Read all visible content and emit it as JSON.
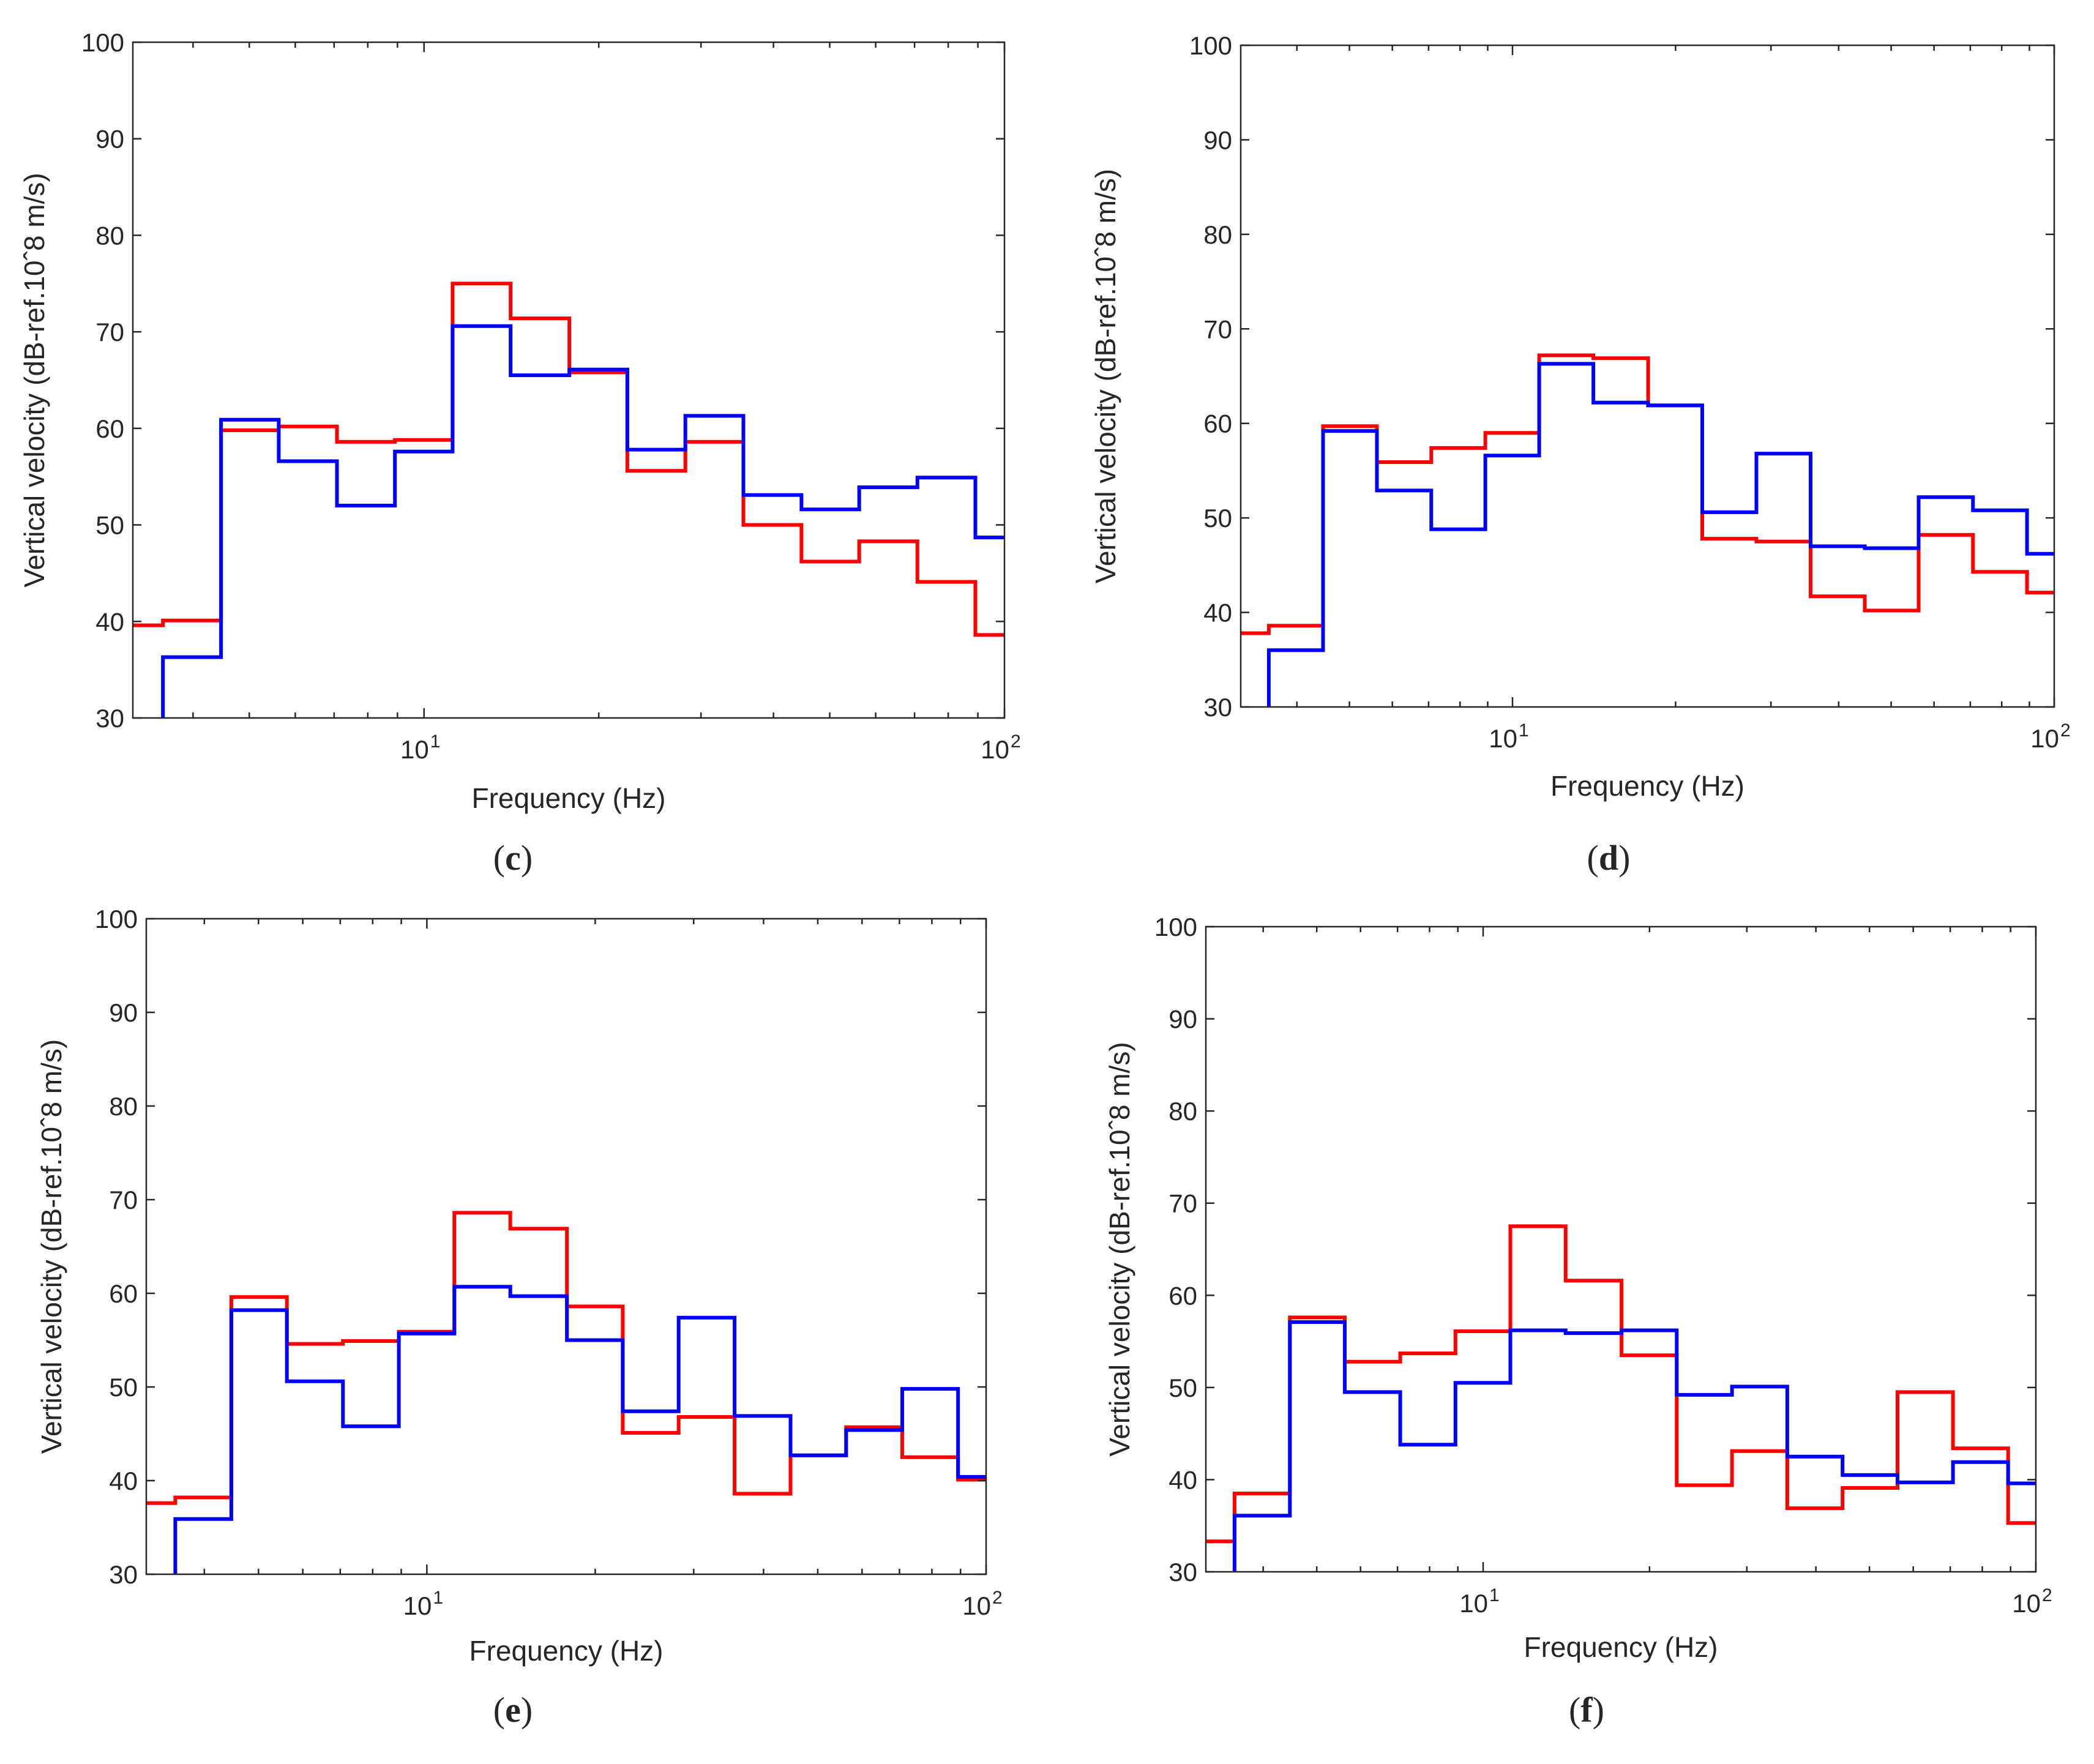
{
  "figure": {
    "colors": {
      "series_a": "#ff0000",
      "series_b": "#0000ff",
      "axes": "#262626"
    }
  },
  "chart_data": [
    {
      "type": "line",
      "step": true,
      "panel_label": "c",
      "xlabel": "Frequency (Hz)",
      "ylabel": "Vertical velocity (dB-ref.10ˆ8 m/s)",
      "xscale": "log",
      "xlim": [
        3.15,
        100
      ],
      "ylim": [
        30,
        100
      ],
      "yticks": [
        "30",
        "40",
        "50",
        "60",
        "70",
        "80",
        "90",
        "100"
      ],
      "xticks": [
        {
          "base": "10",
          "exp": "1",
          "value": 10
        },
        {
          "base": "10",
          "exp": "2",
          "value": 100
        }
      ],
      "band_edges": [
        3.15,
        3.55,
        4.47,
        5.62,
        7.08,
        8.91,
        11.2,
        14.1,
        17.8,
        22.4,
        28.2,
        35.5,
        44.7,
        56.2,
        70.8,
        89.1,
        100
      ],
      "series": [
        {
          "name": "red",
          "color": "#ff0000",
          "values": [
            39.6,
            40.1,
            59.8,
            60.2,
            58.6,
            58.8,
            75.0,
            71.4,
            65.8,
            55.6,
            58.6,
            50.0,
            46.2,
            48.3,
            44.1,
            38.6
          ]
        },
        {
          "name": "blue",
          "color": "#0000ff",
          "values": [
            null,
            36.3,
            60.9,
            56.6,
            52.0,
            57.6,
            70.6,
            65.5,
            66.1,
            57.8,
            61.3,
            53.1,
            51.6,
            53.9,
            54.9,
            48.7
          ]
        }
      ]
    },
    {
      "type": "line",
      "step": true,
      "panel_label": "d",
      "xlabel": "Frequency (Hz)",
      "ylabel": "Vertical velocity (dB-ref.10ˆ8 m/s)",
      "xscale": "log",
      "xlim": [
        3.15,
        100
      ],
      "ylim": [
        30,
        100
      ],
      "yticks": [
        "30",
        "40",
        "50",
        "60",
        "70",
        "80",
        "90",
        "100"
      ],
      "xticks": [
        {
          "base": "10",
          "exp": "1",
          "value": 10
        },
        {
          "base": "10",
          "exp": "2",
          "value": 100
        }
      ],
      "band_edges": [
        3.15,
        3.55,
        4.47,
        5.62,
        7.08,
        8.91,
        11.2,
        14.1,
        17.8,
        22.4,
        28.2,
        35.5,
        44.7,
        56.2,
        70.8,
        89.1,
        100
      ],
      "series": [
        {
          "name": "red",
          "color": "#ff0000",
          "values": [
            37.8,
            38.6,
            59.7,
            55.9,
            57.4,
            59.0,
            67.2,
            66.9,
            61.9,
            47.8,
            47.5,
            41.7,
            40.2,
            48.2,
            44.3,
            42.1
          ]
        },
        {
          "name": "blue",
          "color": "#0000ff",
          "values": [
            null,
            36.0,
            59.2,
            52.9,
            48.8,
            56.6,
            66.3,
            62.2,
            61.9,
            50.6,
            56.8,
            47.0,
            46.8,
            52.2,
            50.8,
            46.2
          ]
        }
      ]
    },
    {
      "type": "line",
      "step": true,
      "panel_label": "e",
      "xlabel": "Frequency (Hz)",
      "ylabel": "Vertical velocity (dB-ref.10ˆ8 m/s)",
      "xscale": "log",
      "xlim": [
        3.15,
        100
      ],
      "ylim": [
        30,
        100
      ],
      "yticks": [
        "30",
        "40",
        "50",
        "60",
        "70",
        "80",
        "90",
        "100"
      ],
      "xticks": [
        {
          "base": "10",
          "exp": "1",
          "value": 10
        },
        {
          "base": "10",
          "exp": "2",
          "value": 100
        }
      ],
      "band_edges": [
        3.15,
        3.55,
        4.47,
        5.62,
        7.08,
        8.91,
        11.2,
        14.1,
        17.8,
        22.4,
        28.2,
        35.5,
        44.7,
        56.2,
        70.8,
        89.1,
        100
      ],
      "series": [
        {
          "name": "red",
          "color": "#ff0000",
          "values": [
            37.6,
            38.2,
            59.6,
            54.6,
            54.9,
            55.9,
            68.6,
            66.9,
            58.6,
            45.1,
            46.8,
            38.6,
            42.7,
            45.7,
            42.5,
            40.1
          ]
        },
        {
          "name": "blue",
          "color": "#0000ff",
          "values": [
            null,
            35.9,
            58.2,
            50.6,
            45.8,
            55.7,
            60.7,
            59.7,
            55.0,
            47.4,
            57.4,
            46.9,
            42.7,
            45.4,
            49.8,
            40.4
          ]
        }
      ]
    },
    {
      "type": "line",
      "step": true,
      "panel_label": "f",
      "xlabel": "Frequency (Hz)",
      "ylabel": "Vertical velocity (dB-ref.10ˆ8 m/s)",
      "xscale": "log",
      "xlim": [
        3.15,
        100
      ],
      "ylim": [
        30,
        100
      ],
      "yticks": [
        "30",
        "40",
        "50",
        "60",
        "70",
        "80",
        "90",
        "100"
      ],
      "xticks": [
        {
          "base": "10",
          "exp": "1",
          "value": 10
        },
        {
          "base": "10",
          "exp": "2",
          "value": 100
        }
      ],
      "band_edges": [
        3.15,
        3.55,
        4.47,
        5.62,
        7.08,
        8.91,
        11.2,
        14.1,
        17.8,
        22.4,
        28.2,
        35.5,
        44.7,
        56.2,
        70.8,
        89.1,
        100
      ],
      "series": [
        {
          "name": "red",
          "color": "#ff0000",
          "values": [
            33.3,
            38.5,
            57.6,
            52.8,
            53.7,
            56.1,
            67.5,
            61.6,
            53.5,
            39.4,
            43.1,
            36.9,
            39.1,
            49.5,
            43.4,
            35.3
          ]
        },
        {
          "name": "blue",
          "color": "#0000ff",
          "values": [
            null,
            36.1,
            57.1,
            49.5,
            43.8,
            50.5,
            56.2,
            55.9,
            56.2,
            49.2,
            50.1,
            42.5,
            40.5,
            39.7,
            41.9,
            39.6
          ]
        }
      ]
    }
  ]
}
